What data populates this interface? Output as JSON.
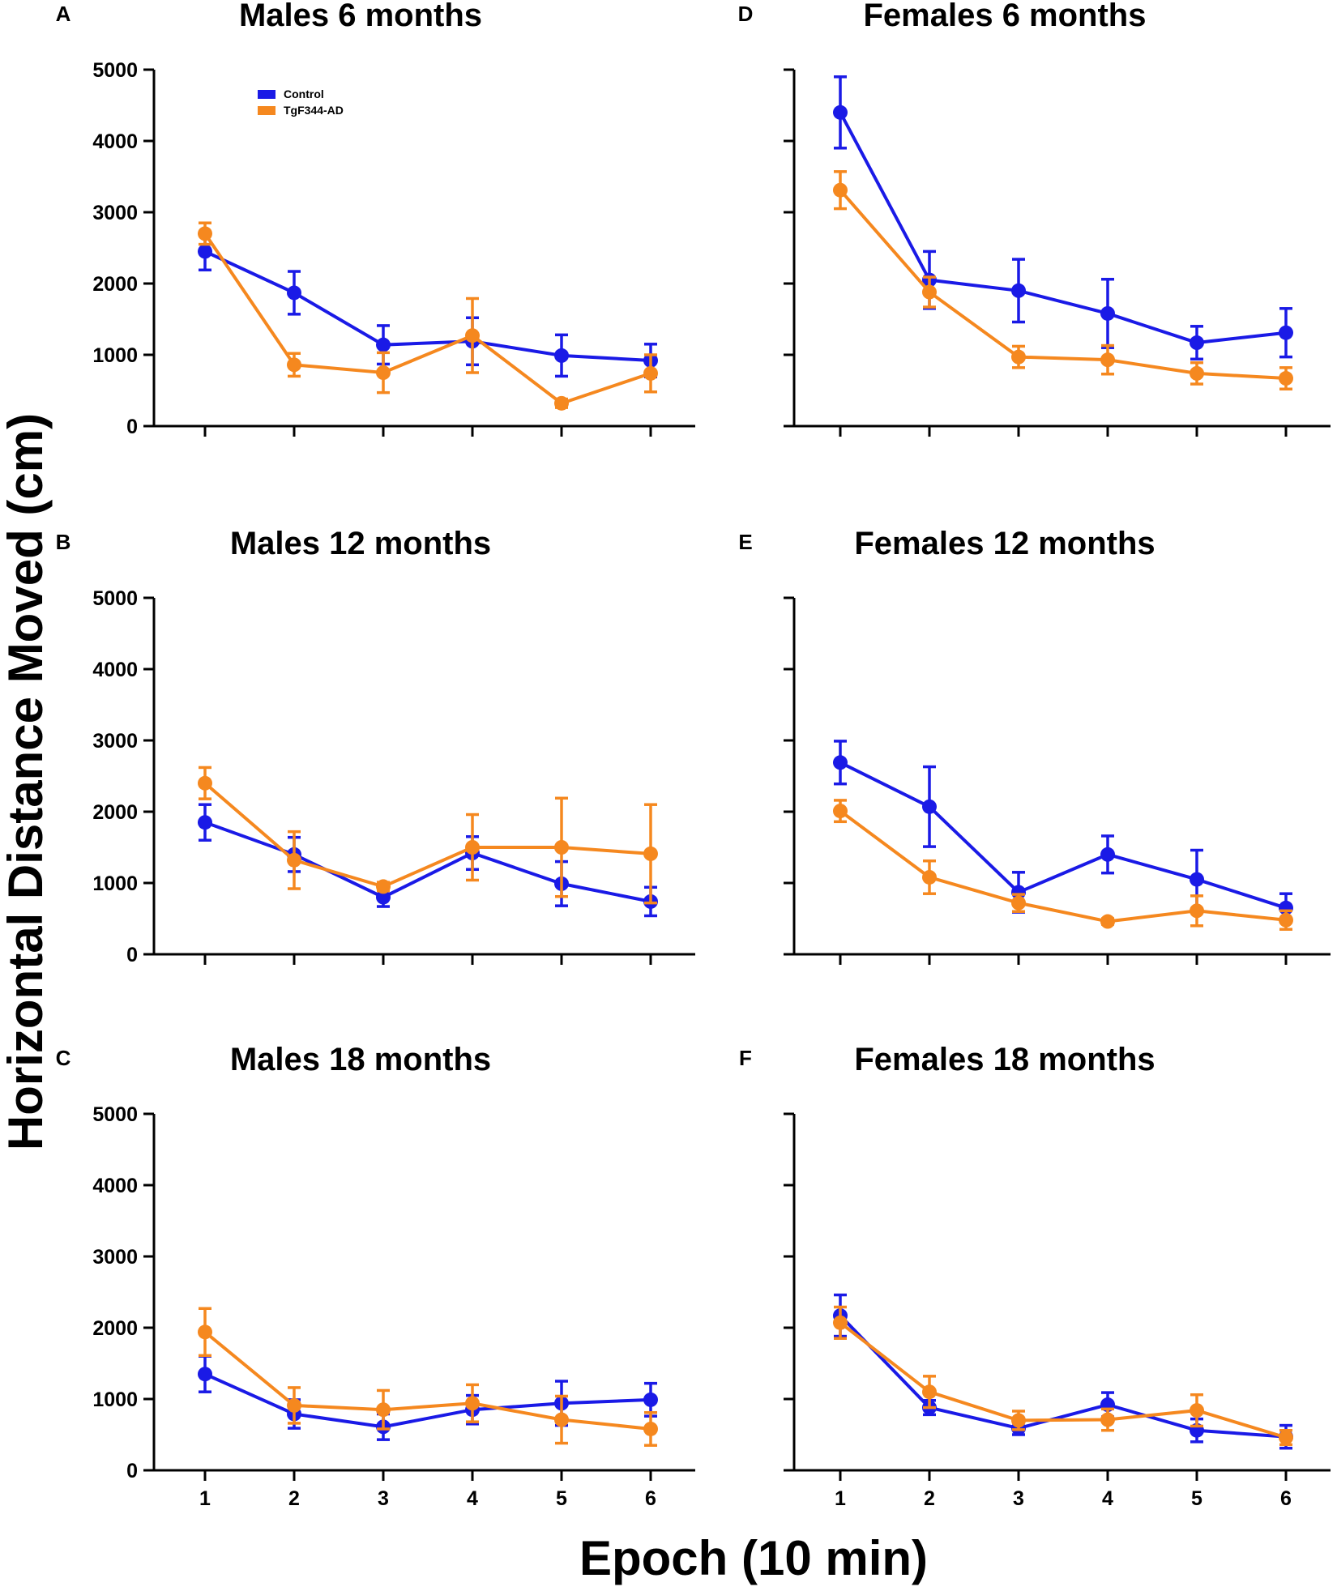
{
  "chart_data": {
    "type": "line",
    "ylabel": "Horizontal Distance Moved (cm)",
    "xlabel": "Epoch (10 min)",
    "x": [
      1,
      2,
      3,
      4,
      5,
      6
    ],
    "ylim": [
      0,
      5000
    ],
    "yticks": [
      0,
      1000,
      2000,
      3000,
      4000,
      5000
    ],
    "xticks": [
      "1",
      "2",
      "3",
      "4",
      "5",
      "6"
    ],
    "legend": {
      "location": "top-left of panel A",
      "entries": [
        {
          "name": "Control",
          "color": "#1a1ae6"
        },
        {
          "name": "TgF344-AD",
          "color": "#f5881f"
        }
      ]
    },
    "panels": [
      {
        "letter": "A",
        "title": "Males 6 months",
        "series": [
          {
            "name": "Control",
            "color": "#1a1ae6",
            "values": [
              2450,
              1870,
              1140,
              1190,
              990,
              920
            ],
            "errors": [
              260,
              300,
              270,
              330,
              290,
              230
            ]
          },
          {
            "name": "TgF344-AD",
            "color": "#f5881f",
            "values": [
              2700,
              860,
              750,
              1270,
              320,
              740
            ],
            "errors": [
              150,
              160,
              280,
              520,
              60,
              260
            ]
          }
        ]
      },
      {
        "letter": "B",
        "title": "Males 12 months",
        "series": [
          {
            "name": "Control",
            "color": "#1a1ae6",
            "values": [
              1850,
              1400,
              800,
              1420,
              990,
              740
            ],
            "errors": [
              250,
              240,
              130,
              230,
              310,
              200
            ]
          },
          {
            "name": "TgF344-AD",
            "color": "#f5881f",
            "values": [
              2400,
              1320,
              950,
              1500,
              1500,
              1410
            ],
            "errors": [
              220,
              400,
              60,
              460,
              690,
              690
            ]
          }
        ]
      },
      {
        "letter": "C",
        "title": "Males 18 months",
        "series": [
          {
            "name": "Control",
            "color": "#1a1ae6",
            "values": [
              1350,
              790,
              610,
              850,
              940,
              990
            ],
            "errors": [
              250,
              200,
              180,
              200,
              310,
              230
            ]
          },
          {
            "name": "TgF344-AD",
            "color": "#f5881f",
            "values": [
              1940,
              910,
              850,
              940,
              710,
              580
            ],
            "errors": [
              330,
              250,
              270,
              260,
              330,
              230
            ]
          }
        ]
      },
      {
        "letter": "D",
        "title": "Females 6 months",
        "series": [
          {
            "name": "Control",
            "color": "#1a1ae6",
            "values": [
              4400,
              2050,
              1900,
              1580,
              1170,
              1310
            ],
            "errors": [
              500,
              400,
              440,
              480,
              230,
              340
            ]
          },
          {
            "name": "TgF344-AD",
            "color": "#f5881f",
            "values": [
              3310,
              1880,
              970,
              930,
              740,
              670
            ],
            "errors": [
              260,
              210,
              150,
              200,
              150,
              150
            ]
          }
        ]
      },
      {
        "letter": "E",
        "title": "Females 12 months",
        "series": [
          {
            "name": "Control",
            "color": "#1a1ae6",
            "values": [
              2690,
              2070,
              870,
              1400,
              1050,
              650
            ],
            "errors": [
              300,
              560,
              280,
              260,
              410,
              200
            ]
          },
          {
            "name": "TgF344-AD",
            "color": "#f5881f",
            "values": [
              2010,
              1080,
              720,
              460,
              610,
              480
            ],
            "errors": [
              150,
              230,
              120,
              40,
              210,
              130
            ]
          }
        ]
      },
      {
        "letter": "F",
        "title": "Females 18 months",
        "series": [
          {
            "name": "Control",
            "color": "#1a1ae6",
            "values": [
              2170,
              880,
              590,
              920,
              560,
              470
            ],
            "errors": [
              290,
              100,
              90,
              170,
              160,
              160
            ]
          },
          {
            "name": "TgF344-AD",
            "color": "#f5881f",
            "values": [
              2070,
              1100,
              700,
              710,
              840,
              460
            ],
            "errors": [
              220,
              220,
              130,
              150,
              220,
              100
            ]
          }
        ]
      }
    ]
  }
}
